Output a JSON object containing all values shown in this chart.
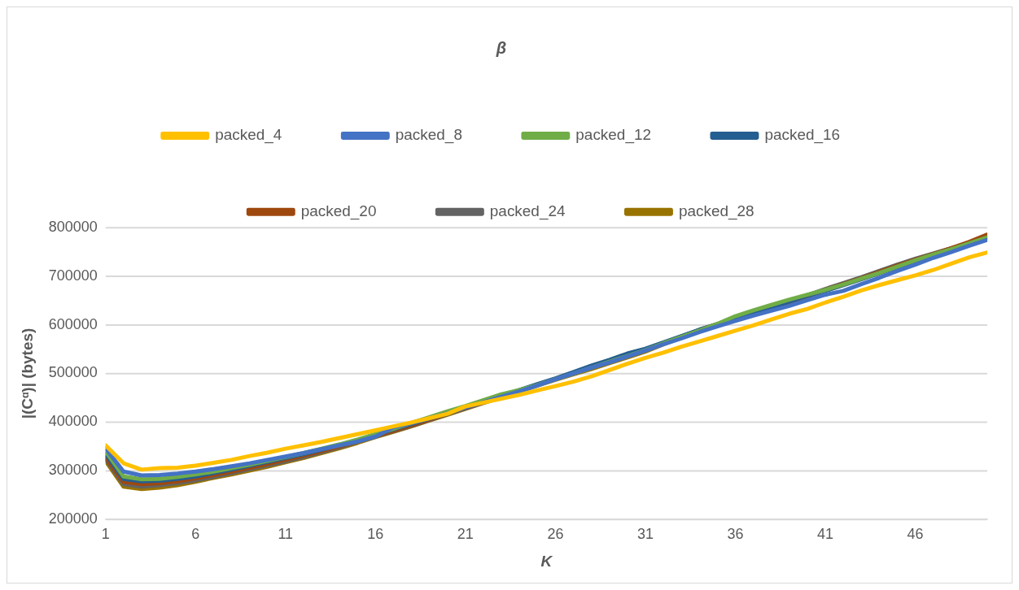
{
  "chart_data": {
    "type": "line",
    "title": "β",
    "xlabel": "K",
    "ylabel": "|(Cᵅ)| (bytes)",
    "x": [
      1,
      2,
      3,
      4,
      5,
      6,
      7,
      8,
      9,
      10,
      11,
      12,
      13,
      14,
      15,
      16,
      17,
      18,
      19,
      20,
      21,
      22,
      23,
      24,
      25,
      26,
      27,
      28,
      29,
      30,
      31,
      32,
      33,
      34,
      35,
      36,
      37,
      38,
      39,
      40,
      41,
      42,
      43,
      44,
      45,
      46,
      47,
      48,
      49,
      50
    ],
    "xlim": [
      1,
      50
    ],
    "xticks": [
      1,
      6,
      11,
      16,
      21,
      26,
      31,
      36,
      41,
      46
    ],
    "ylim": [
      200000,
      800000
    ],
    "yticks": [
      200000,
      300000,
      400000,
      500000,
      600000,
      700000,
      800000
    ],
    "grid": "y",
    "legend": "top",
    "marker": "none",
    "line_style": "solid",
    "series": [
      {
        "name": "packed_4",
        "color": "#ffc000",
        "values": [
          352000,
          315000,
          302000,
          305000,
          306000,
          310000,
          316000,
          322000,
          330000,
          337000,
          345000,
          352000,
          359000,
          367000,
          375000,
          383000,
          391000,
          399000,
          408000,
          417000,
          432000,
          440000,
          448000,
          456000,
          465000,
          474000,
          483000,
          494000,
          507000,
          520000,
          532000,
          543000,
          555000,
          566000,
          577000,
          588000,
          599000,
          611000,
          623000,
          633000,
          646000,
          658000,
          671000,
          682000,
          692000,
          702000,
          713000,
          726000,
          739000,
          749000
        ]
      },
      {
        "name": "packed_8",
        "color": "#4472c4",
        "values": [
          346000,
          298000,
          290000,
          291000,
          294000,
          298000,
          303000,
          309000,
          315000,
          322000,
          329000,
          336000,
          344000,
          352000,
          360000,
          370000,
          389000,
          398000,
          408000,
          418000,
          430000,
          441000,
          452000,
          463000,
          475000,
          488000,
          500000,
          512000,
          523000,
          535000,
          547000,
          560000,
          572000,
          585000,
          597000,
          608000,
          619000,
          629000,
          639000,
          651000,
          662000,
          670000,
          684000,
          697000,
          711000,
          724000,
          738000,
          750000,
          763000,
          775000
        ]
      },
      {
        "name": "packed_12",
        "color": "#70ad47",
        "values": [
          340000,
          288000,
          282000,
          283000,
          287000,
          292000,
          298000,
          305000,
          312000,
          320000,
          328000,
          336000,
          345000,
          354000,
          364000,
          375000,
          386000,
          398000,
          410000,
          422000,
          433000,
          445000,
          457000,
          466000,
          476000,
          488000,
          500000,
          512000,
          524000,
          536000,
          548000,
          562000,
          575000,
          588000,
          602000,
          618000,
          630000,
          641000,
          652000,
          662000,
          672000,
          683000,
          695000,
          707000,
          720000,
          733000,
          745000,
          756000,
          768000,
          780000
        ]
      },
      {
        "name": "packed_16",
        "color": "#255e91",
        "values": [
          334000,
          283000,
          278000,
          279000,
          283000,
          288000,
          295000,
          302000,
          310000,
          318000,
          326000,
          334000,
          343000,
          353000,
          363000,
          374000,
          385000,
          396000,
          407000,
          418000,
          430000,
          442000,
          454000,
          466000,
          478000,
          490000,
          503000,
          516000,
          528000,
          541000,
          551000,
          564000,
          577000,
          590000,
          601000,
          612000,
          624000,
          636000,
          648000,
          660000,
          670000,
          682000,
          694000,
          706000,
          719000,
          731000,
          743000,
          754000,
          765000,
          776000
        ]
      },
      {
        "name": "packed_20",
        "color": "#9e480e",
        "values": [
          328000,
          277000,
          272000,
          274000,
          278000,
          284000,
          291000,
          298000,
          306000,
          314000,
          322000,
          331000,
          340000,
          350000,
          360000,
          371000,
          382000,
          393000,
          405000,
          417000,
          429000,
          441000,
          453000,
          465000,
          477000,
          489000,
          501000,
          513000,
          525000,
          537000,
          549000,
          563000,
          576000,
          589000,
          600000,
          611000,
          623000,
          635000,
          647000,
          659000,
          672000,
          684000,
          696000,
          709000,
          722000,
          734000,
          746000,
          758000,
          771000,
          786000
        ]
      },
      {
        "name": "packed_24",
        "color": "#636363",
        "values": [
          324000,
          272000,
          267000,
          270000,
          274000,
          280000,
          287000,
          295000,
          303000,
          311000,
          319000,
          328000,
          338000,
          348000,
          359000,
          370000,
          381000,
          392000,
          404000,
          416000,
          428000,
          440000,
          452000,
          464000,
          476000,
          488000,
          500000,
          511000,
          523000,
          535000,
          547000,
          562000,
          576000,
          590000,
          602000,
          613000,
          625000,
          637000,
          649000,
          661000,
          674000,
          686000,
          698000,
          711000,
          724000,
          736000,
          747000,
          758000,
          769000,
          781000
        ]
      },
      {
        "name": "packed_28",
        "color": "#997300",
        "values": [
          320000,
          267000,
          262000,
          265000,
          270000,
          277000,
          285000,
          292000,
          300000,
          308000,
          317000,
          326000,
          336000,
          346000,
          357000,
          369000,
          380000,
          391000,
          403000,
          415000,
          427000,
          439000,
          451000,
          463000,
          475000,
          487000,
          498000,
          509000,
          521000,
          533000,
          545000,
          560000,
          574000,
          587000,
          599000,
          610000,
          622000,
          634000,
          646000,
          658000,
          671000,
          683000,
          695000,
          708000,
          721000,
          733000,
          745000,
          756000,
          767000,
          778000
        ]
      }
    ]
  }
}
